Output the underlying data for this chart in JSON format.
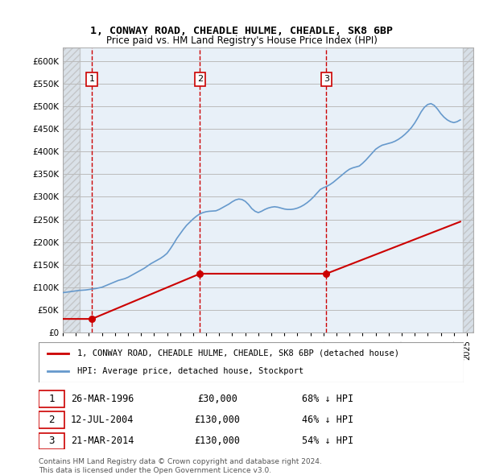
{
  "title_line1": "1, CONWAY ROAD, CHEADLE HULME, CHEADLE, SK8 6BP",
  "title_line2": "Price paid vs. HM Land Registry's House Price Index (HPI)",
  "ylabel_ticks": [
    "£0",
    "£50K",
    "£100K",
    "£150K",
    "£200K",
    "£250K",
    "£300K",
    "£350K",
    "£400K",
    "£450K",
    "£500K",
    "£550K",
    "£600K"
  ],
  "ytick_values": [
    0,
    50000,
    100000,
    150000,
    200000,
    250000,
    300000,
    350000,
    400000,
    450000,
    500000,
    550000,
    600000
  ],
  "ylim": [
    0,
    630000
  ],
  "xlim_start": 1994.0,
  "xlim_end": 2025.5,
  "sale_dates": [
    1996.23,
    2004.53,
    2014.22
  ],
  "sale_prices": [
    30000,
    130000,
    130000
  ],
  "sale_labels": [
    "1",
    "2",
    "3"
  ],
  "vline_color": "#cc0000",
  "sale_point_color": "#cc0000",
  "hpi_line_color": "#6699cc",
  "sale_line_color": "#cc0000",
  "background_color": "#ffffff",
  "plot_bg_color": "#e8f0f8",
  "hatch_color": "#cccccc",
  "grid_color": "#bbbbbb",
  "legend_label_red": "1, CONWAY ROAD, CHEADLE HULME, CHEADLE, SK8 6BP (detached house)",
  "legend_label_blue": "HPI: Average price, detached house, Stockport",
  "table_rows": [
    {
      "num": "1",
      "date": "26-MAR-1996",
      "price": "£30,000",
      "hpi": "68% ↓ HPI"
    },
    {
      "num": "2",
      "date": "12-JUL-2004",
      "price": "£130,000",
      "hpi": "46% ↓ HPI"
    },
    {
      "num": "3",
      "date": "21-MAR-2014",
      "price": "£130,000",
      "hpi": "54% ↓ HPI"
    }
  ],
  "footnote": "Contains HM Land Registry data © Crown copyright and database right 2024.\nThis data is licensed under the Open Government Licence v3.0.",
  "hpi_years": [
    1994,
    1994.25,
    1994.5,
    1994.75,
    1995,
    1995.25,
    1995.5,
    1995.75,
    1996,
    1996.25,
    1996.5,
    1996.75,
    1997,
    1997.25,
    1997.5,
    1997.75,
    1998,
    1998.25,
    1998.5,
    1998.75,
    1999,
    1999.25,
    1999.5,
    1999.75,
    2000,
    2000.25,
    2000.5,
    2000.75,
    2001,
    2001.25,
    2001.5,
    2001.75,
    2002,
    2002.25,
    2002.5,
    2002.75,
    2003,
    2003.25,
    2003.5,
    2003.75,
    2004,
    2004.25,
    2004.5,
    2004.75,
    2005,
    2005.25,
    2005.5,
    2005.75,
    2006,
    2006.25,
    2006.5,
    2006.75,
    2007,
    2007.25,
    2007.5,
    2007.75,
    2008,
    2008.25,
    2008.5,
    2008.75,
    2009,
    2009.25,
    2009.5,
    2009.75,
    2010,
    2010.25,
    2010.5,
    2010.75,
    2011,
    2011.25,
    2011.5,
    2011.75,
    2012,
    2012.25,
    2012.5,
    2012.75,
    2013,
    2013.25,
    2013.5,
    2013.75,
    2014,
    2014.25,
    2014.5,
    2014.75,
    2015,
    2015.25,
    2015.5,
    2015.75,
    2016,
    2016.25,
    2016.5,
    2016.75,
    2017,
    2017.25,
    2017.5,
    2017.75,
    2018,
    2018.25,
    2018.5,
    2018.75,
    2019,
    2019.25,
    2019.5,
    2019.75,
    2020,
    2020.25,
    2020.5,
    2020.75,
    2021,
    2021.25,
    2021.5,
    2021.75,
    2022,
    2022.25,
    2022.5,
    2022.75,
    2023,
    2023.25,
    2023.5,
    2023.75,
    2024,
    2024.25,
    2024.5
  ],
  "hpi_values": [
    88000,
    89000,
    90000,
    91000,
    92000,
    93000,
    93500,
    94000,
    95000,
    96000,
    97000,
    98500,
    100000,
    103000,
    106000,
    109000,
    112000,
    115000,
    117000,
    119000,
    122000,
    126000,
    130000,
    134000,
    138000,
    142000,
    147000,
    152000,
    156000,
    160000,
    164000,
    169000,
    175000,
    185000,
    196000,
    208000,
    218000,
    228000,
    237000,
    244000,
    251000,
    257000,
    262000,
    265000,
    267000,
    268000,
    268500,
    269000,
    272000,
    276000,
    280000,
    284000,
    289000,
    293000,
    295000,
    294000,
    290000,
    283000,
    274000,
    268000,
    265000,
    268000,
    272000,
    275000,
    277000,
    278000,
    277000,
    275000,
    273000,
    272000,
    272000,
    273000,
    275000,
    278000,
    282000,
    287000,
    293000,
    300000,
    308000,
    316000,
    320000,
    323000,
    327000,
    332000,
    338000,
    344000,
    350000,
    356000,
    361000,
    364000,
    366000,
    368000,
    374000,
    381000,
    389000,
    397000,
    405000,
    410000,
    414000,
    416000,
    418000,
    420000,
    423000,
    427000,
    432000,
    438000,
    445000,
    453000,
    463000,
    475000,
    488000,
    498000,
    504000,
    506000,
    502000,
    494000,
    484000,
    476000,
    470000,
    466000,
    464000,
    466000,
    470000
  ],
  "sale_hpi_line_x": [
    1994.0,
    1996.23,
    2004.53,
    2014.22,
    2024.5
  ],
  "sale_hpi_line_y": [
    30000,
    30000,
    130000,
    130000,
    245000
  ]
}
